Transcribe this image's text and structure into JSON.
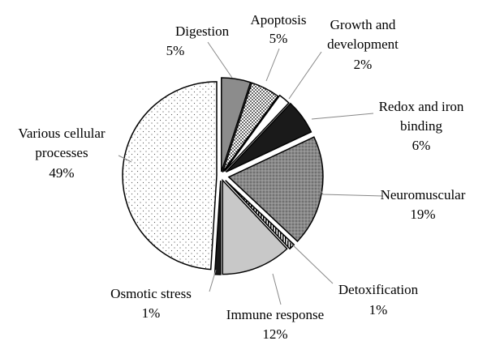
{
  "chart_data": {
    "type": "pie",
    "exploded": true,
    "legend": "none",
    "slices": [
      {
        "label": "Digestion",
        "value": 5,
        "pct": "5%",
        "fill": "dark-gray"
      },
      {
        "label": "Apoptosis",
        "value": 5,
        "pct": "5%",
        "fill": "dense-dots"
      },
      {
        "label": "Growth and development",
        "value": 2,
        "pct": "2%",
        "fill": "white"
      },
      {
        "label": "Redox and iron binding",
        "value": 6,
        "pct": "6%",
        "fill": "black"
      },
      {
        "label": "Neuromuscular",
        "value": 19,
        "pct": "19%",
        "fill": "gray-dots"
      },
      {
        "label": "Detoxification",
        "value": 1,
        "pct": "1%",
        "fill": "stripes"
      },
      {
        "label": "Immune response",
        "value": 12,
        "pct": "12%",
        "fill": "light-gray"
      },
      {
        "label": "Osmotic stress",
        "value": 1,
        "pct": "1%",
        "fill": "black"
      },
      {
        "label": "Various cellular processes",
        "value": 49,
        "pct": "49%",
        "fill": "sparse-dots"
      }
    ],
    "colors": {
      "black": "#1a1a1a",
      "dark_gray": "#8c8c8c",
      "light_gray": "#c8c8c8",
      "white": "#ffffff"
    }
  }
}
